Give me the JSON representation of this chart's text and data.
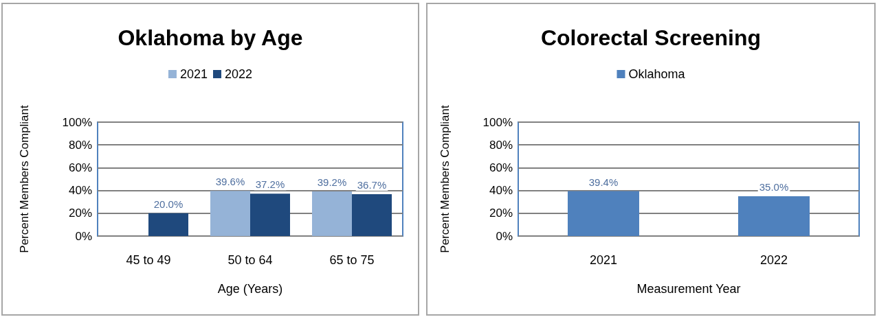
{
  "chart_data": [
    {
      "type": "bar",
      "title": "Oklahoma by Age",
      "xlabel": "Age (Years)",
      "ylabel": "Percent Members Compliant",
      "categories": [
        "45 to 49",
        "50 to 64",
        "65 to 75"
      ],
      "series": [
        {
          "name": "2021",
          "color": "#95b3d7",
          "values": [
            null,
            39.6,
            39.2
          ],
          "value_labels": [
            null,
            "39.6%",
            "39.2%"
          ]
        },
        {
          "name": "2022",
          "color": "#1f497d",
          "values": [
            20.0,
            37.2,
            36.7
          ],
          "value_labels": [
            "20.0%",
            "37.2%",
            "36.7%"
          ]
        }
      ],
      "ylim": [
        0,
        100
      ],
      "yticks": [
        {
          "value": 0,
          "label": "0%"
        },
        {
          "value": 20,
          "label": "20%"
        },
        {
          "value": 40,
          "label": "40%"
        },
        {
          "value": 60,
          "label": "60%"
        },
        {
          "value": 80,
          "label": "80%"
        },
        {
          "value": 100,
          "label": "100%"
        }
      ],
      "grid": "y",
      "legend": "top"
    },
    {
      "type": "bar",
      "title": "Colorectal Screening",
      "xlabel": "Measurement Year",
      "ylabel": "Percent Members Compliant",
      "categories": [
        "2021",
        "2022"
      ],
      "series": [
        {
          "name": "Oklahoma",
          "color": "#4f81bd",
          "values": [
            39.4,
            35.0
          ],
          "value_labels": [
            "39.4%",
            "35.0%"
          ]
        }
      ],
      "ylim": [
        0,
        100
      ],
      "yticks": [
        {
          "value": 0,
          "label": "0%"
        },
        {
          "value": 20,
          "label": "20%"
        },
        {
          "value": 40,
          "label": "40%"
        },
        {
          "value": 60,
          "label": "60%"
        },
        {
          "value": 80,
          "label": "80%"
        },
        {
          "value": 100,
          "label": "100%"
        }
      ],
      "grid": "y",
      "legend": "top"
    }
  ]
}
